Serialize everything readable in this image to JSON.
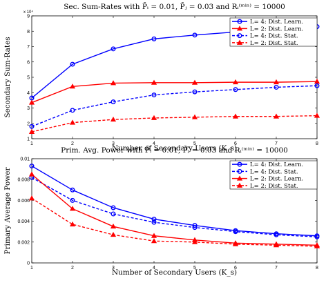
{
  "chart_data": [
    {
      "type": "line",
      "title": "Sec. Sum-Rates with P̄ᵢ = 0.01, P̄ⱼ = 0.03 and Rᵢ⁽ᵐⁱⁿ⁾ = 10000",
      "xlabel": "Number of Secondary Users (K_s)",
      "ylabel": "Secondary Sum-Rates",
      "y_exponent_label": "x 10⁴",
      "xlim": [
        1,
        8
      ],
      "ylim": [
        1,
        9
      ],
      "xticks": [
        "1",
        "2",
        "3",
        "4",
        "5",
        "6",
        "7",
        "8"
      ],
      "yticks": [
        "1",
        "2",
        "3",
        "4",
        "5",
        "6",
        "7",
        "8",
        "9"
      ],
      "grid": false,
      "legend_position": "top-right",
      "x": [
        1,
        2,
        3,
        4,
        5,
        6,
        7,
        8
      ],
      "series": [
        {
          "name": "L= 4: Dist. Learn.",
          "color": "#0000ff",
          "dash": "solid",
          "marker": "circle",
          "values": [
            3.65,
            5.85,
            6.85,
            7.5,
            7.75,
            7.95,
            8.1,
            8.3
          ]
        },
        {
          "name": "L= 2: Dist. Learn.",
          "color": "#ff0000",
          "dash": "solid",
          "marker": "triangle",
          "values": [
            3.35,
            4.4,
            4.62,
            4.65,
            4.65,
            4.68,
            4.68,
            4.72
          ]
        },
        {
          "name": "L= 4: Dist. Stat.",
          "color": "#0000ff",
          "dash": "dashed",
          "marker": "circle",
          "values": [
            1.8,
            2.85,
            3.4,
            3.85,
            4.05,
            4.2,
            4.35,
            4.45
          ]
        },
        {
          "name": "L= 2: Dist. Stat.",
          "color": "#ff0000",
          "dash": "dashed",
          "marker": "triangle",
          "values": [
            1.45,
            2.05,
            2.25,
            2.35,
            2.4,
            2.45,
            2.45,
            2.5
          ]
        }
      ]
    },
    {
      "type": "line",
      "title": "Prim. Avg. Power with P̄ᵢ = 0.01, P̄ⱼ = 0.03 and Rᵢ⁽ᵐⁱⁿ⁾ = 10000",
      "xlabel": "Number of Secondary Users (K_s)",
      "ylabel": "Primary Average Power",
      "xlim": [
        1,
        8
      ],
      "ylim": [
        0,
        0.01
      ],
      "xticks": [
        "1",
        "2",
        "3",
        "4",
        "5",
        "6",
        "7",
        "8"
      ],
      "yticks": [
        "0",
        "0.002",
        "0.004",
        "0.006",
        "0.008",
        "0.01"
      ],
      "grid": false,
      "legend_position": "top-right",
      "x": [
        1,
        2,
        3,
        4,
        5,
        6,
        7,
        8
      ],
      "series": [
        {
          "name": "L= 4: Dist. Learn.",
          "color": "#0000ff",
          "dash": "solid",
          "marker": "circle",
          "values": [
            0.0093,
            0.007,
            0.0053,
            0.0042,
            0.0036,
            0.0031,
            0.0028,
            0.0026
          ]
        },
        {
          "name": "L= 4: Dist. Stat.",
          "color": "#0000ff",
          "dash": "dashed",
          "marker": "circle",
          "values": [
            0.0082,
            0.006,
            0.0047,
            0.0039,
            0.0034,
            0.003,
            0.0027,
            0.0025
          ]
        },
        {
          "name": "L= 2: Dist. Learn.",
          "color": "#ff0000",
          "dash": "solid",
          "marker": "triangle",
          "values": [
            0.0085,
            0.0052,
            0.0035,
            0.0026,
            0.0022,
            0.0019,
            0.0018,
            0.0017
          ]
        },
        {
          "name": "L= 2: Dist. Stat.",
          "color": "#ff0000",
          "dash": "dashed",
          "marker": "triangle",
          "values": [
            0.0062,
            0.0037,
            0.0027,
            0.0021,
            0.002,
            0.0018,
            0.0017,
            0.0016
          ]
        }
      ]
    }
  ]
}
